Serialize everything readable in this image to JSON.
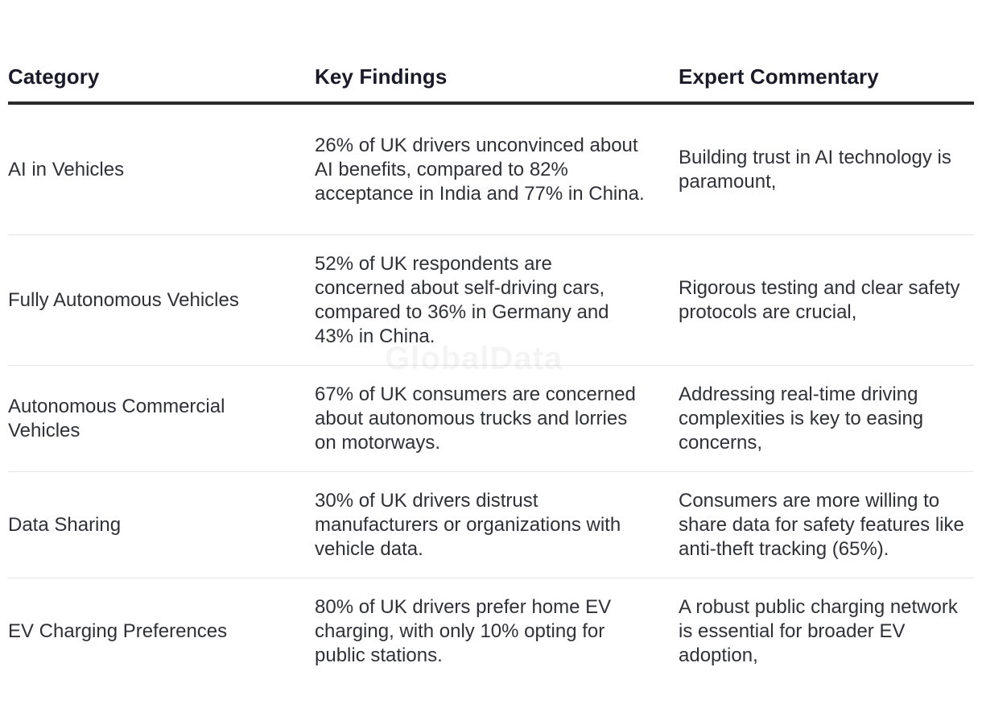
{
  "table": {
    "headers": [
      "Category",
      "Key Findings",
      "Expert Commentary"
    ],
    "rows": [
      {
        "category": "AI in Vehicles",
        "finding": "26% of UK drivers unconvinced about AI benefits, compared to 82% acceptance in India and 77% in China.",
        "commentary": "Building trust in AI technology is paramount,"
      },
      {
        "category": "Fully Autonomous Vehicles",
        "finding": "52% of UK respondents are concerned about self-driving cars, compared to 36% in Germany and 43% in China.",
        "commentary": "Rigorous testing and clear safety protocols are crucial,"
      },
      {
        "category": "Autonomous Commercial Vehicles",
        "finding": "67% of UK consumers are concerned about autonomous trucks and lorries on motorways.",
        "commentary": "Addressing real-time driving complexities is key to easing concerns,"
      },
      {
        "category": "Data Sharing",
        "finding": "30% of UK drivers distrust manufacturers or organizations with vehicle data.",
        "commentary": "Consumers are more willing to share data for safety features like anti-theft tracking (65%)."
      },
      {
        "category": "EV Charging Preferences",
        "finding": "80% of UK drivers prefer home EV charging, with only 10% opting for public stations.",
        "commentary": "A robust public charging network is essential for broader EV adoption,"
      }
    ]
  },
  "watermark": "GlobalData"
}
